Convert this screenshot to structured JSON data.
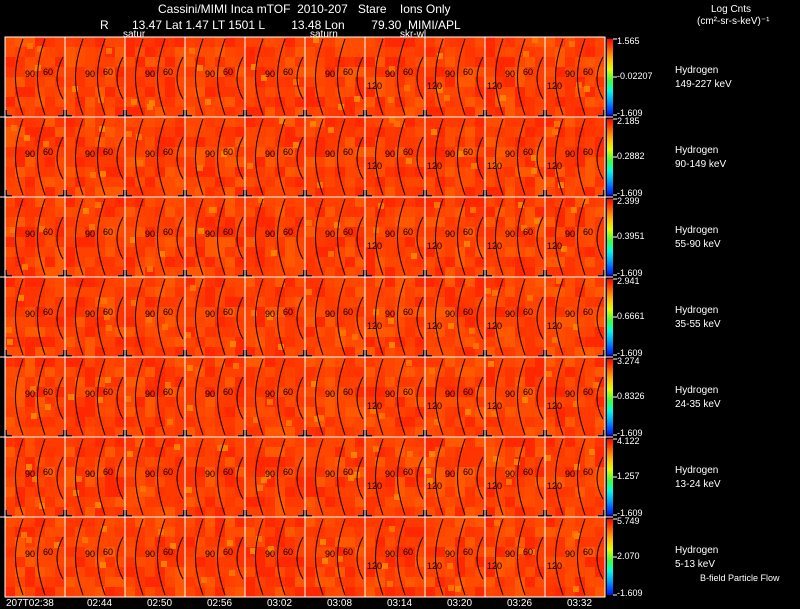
{
  "header": {
    "title": "Cassini/MIMI Inca mTOF  2010-207   Stare    Ions Only",
    "line2": "R       13.47 Lat 1.47 LT 1501 L        13.48 Lon        79.30  MIMI/APL",
    "unit_line1": "Log Cnts",
    "unit_line2": "(cm²-sr-s-keV)⁻¹",
    "overlay_labels": [
      "satur",
      "saturn",
      "skr-wl"
    ]
  },
  "contour_labels": [
    "90",
    "60",
    "120"
  ],
  "rows": [
    {
      "species": "Hydrogen",
      "energy": "149-227 keV",
      "cmax": "1.565",
      "cmid": "-0.02207",
      "cmin": "-1.609"
    },
    {
      "species": "Hydrogen",
      "energy": "90-149 keV",
      "cmax": "2.185",
      "cmid": "0.2882",
      "cmin": "-1.609"
    },
    {
      "species": "Hydrogen",
      "energy": "55-90 keV",
      "cmax": "2.399",
      "cmid": "0.3951",
      "cmin": "-1.609"
    },
    {
      "species": "Hydrogen",
      "energy": "35-55 keV",
      "cmax": "2.941",
      "cmid": "0.6661",
      "cmin": "-1.609"
    },
    {
      "species": "Hydrogen",
      "energy": "24-35 keV",
      "cmax": "3.274",
      "cmid": "0.8326",
      "cmin": "-1.609"
    },
    {
      "species": "Hydrogen",
      "energy": "13-24 keV",
      "cmax": "4.122",
      "cmid": "1.257",
      "cmin": "-1.609"
    },
    {
      "species": "Hydrogen",
      "energy": "5-13 keV",
      "cmax": "5.749",
      "cmid": "2.070",
      "cmin": "-1.609"
    }
  ],
  "times": [
    "207T02:38",
    "02:44",
    "02:50",
    "02:56",
    "03:02",
    "03:08",
    "03:14",
    "03:20",
    "03:26",
    "03:32"
  ],
  "footer_note": "B-field Particle Flow",
  "colors": {
    "background": "#000000",
    "grid": "#ffffff",
    "contour": "#000000"
  }
}
